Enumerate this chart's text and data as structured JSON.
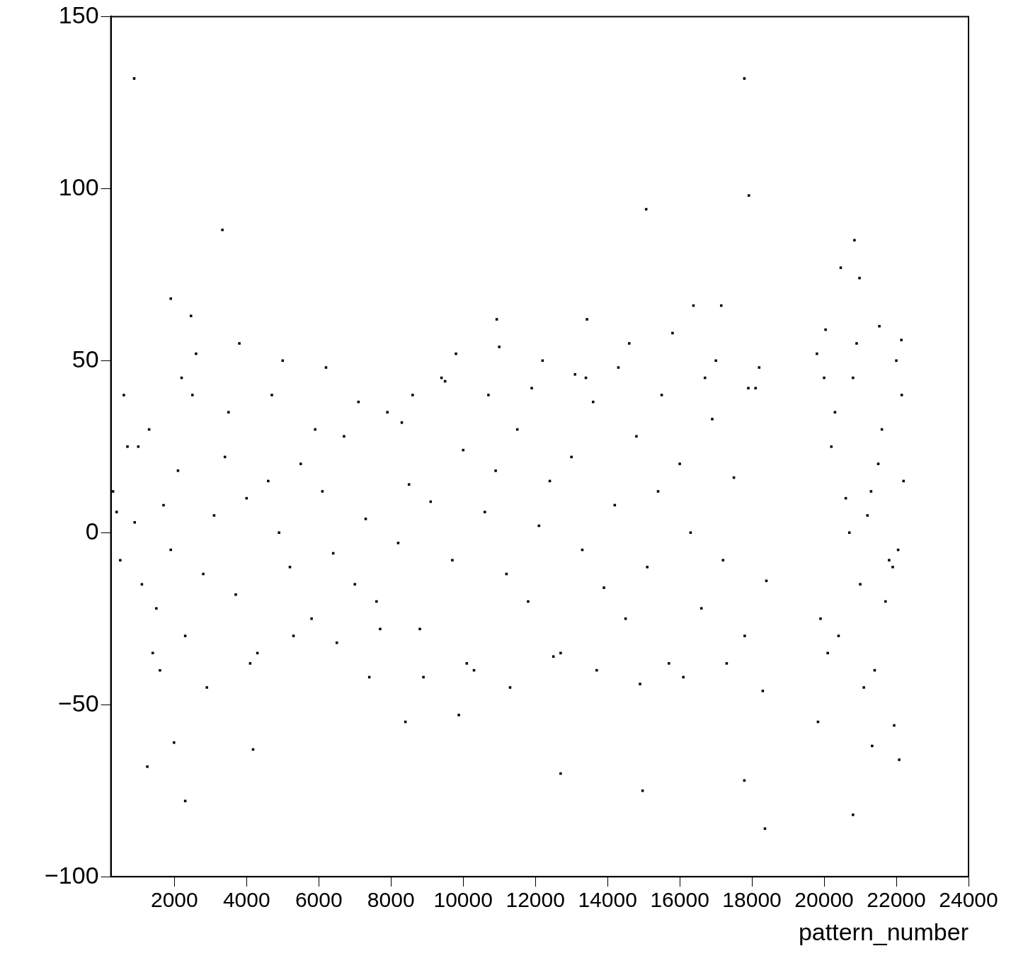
{
  "chart_data": {
    "type": "scatter",
    "xlabel": "pattern_number",
    "marker": "square",
    "grid": false,
    "legend": false,
    "xlim": [
      240,
      24000
    ],
    "xticks": [
      2000,
      4000,
      6000,
      8000,
      10000,
      12000,
      14000,
      16000,
      18000,
      20000,
      22000,
      24000
    ],
    "ylim": [
      -100,
      150
    ],
    "yticks": [
      -100,
      -50,
      0,
      50,
      100,
      150
    ],
    "series": [
      {
        "color": "#000000",
        "x": [
          886,
          17790,
          15070,
          17915,
          3330,
          20840,
          20460,
          20980,
          1900,
          2460,
          16380,
          17150,
          10930,
          13430,
          20040,
          21530,
          22140,
          2300,
          1250,
          4180,
          1990,
          12700,
          14970,
          17790,
          18360,
          20800,
          21330,
          22080,
          19830,
          8400,
          9880,
          21940,
          300,
          500,
          700,
          900,
          1100,
          1300,
          1500,
          1700,
          1900,
          2100,
          2300,
          2500,
          2800,
          3100,
          3400,
          3700,
          4000,
          4300,
          4600,
          4900,
          5200,
          5500,
          5800,
          6100,
          6400,
          6700,
          7000,
          7300,
          7600,
          7900,
          8200,
          8500,
          8800,
          9100,
          9400,
          9700,
          10000,
          10300,
          10600,
          10900,
          11200,
          11500,
          11800,
          12100,
          12400,
          12700,
          13000,
          13300,
          13600,
          13900,
          14200,
          14500,
          14800,
          15100,
          15400,
          15700,
          16000,
          16300,
          16600,
          16900,
          17200,
          17500,
          17800,
          18100,
          18400,
          400,
          1000,
          1600,
          2200,
          2900,
          3500,
          4100,
          4700,
          5300,
          5900,
          6500,
          7100,
          7700,
          8300,
          8900,
          9500,
          10100,
          10700,
          11300,
          11900,
          12500,
          13100,
          13700,
          14300,
          14900,
          15500,
          16100,
          16700,
          17300,
          17900,
          18300,
          600,
          1400,
          2600,
          3800,
          5000,
          6200,
          7400,
          8600,
          9800,
          11000,
          12200,
          13400,
          14600,
          15800,
          17000,
          18200,
          19800,
          20000,
          20200,
          20400,
          20600,
          20800,
          21000,
          21200,
          21400,
          21600,
          21800,
          22000,
          22200,
          19900,
          20300,
          20700,
          21100,
          21500,
          21900,
          22150,
          20100,
          20900,
          21700,
          21300,
          22050
        ],
        "values": [
          132,
          132,
          94,
          98,
          88,
          85,
          77,
          74,
          68,
          63,
          66,
          66,
          62,
          62,
          59,
          60,
          56,
          -78,
          -68,
          -63,
          -61,
          -70,
          -75,
          -72,
          -86,
          -82,
          -62,
          -66,
          -55,
          -55,
          -53,
          -56,
          12,
          -8,
          25,
          3,
          -15,
          30,
          -22,
          8,
          -5,
          18,
          -30,
          40,
          -12,
          5,
          22,
          -18,
          10,
          -35,
          15,
          0,
          -10,
          20,
          -25,
          12,
          -6,
          28,
          -15,
          4,
          -20,
          35,
          -3,
          14,
          -28,
          9,
          45,
          -8,
          24,
          -40,
          6,
          18,
          -12,
          30,
          -20,
          2,
          15,
          -35,
          22,
          -5,
          38,
          -16,
          8,
          -25,
          28,
          -10,
          12,
          -38,
          20,
          0,
          -22,
          33,
          -8,
          16,
          -30,
          42,
          -14,
          6,
          25,
          -40,
          45,
          -45,
          35,
          -38,
          40,
          -30,
          30,
          -32,
          38,
          -28,
          32,
          -42,
          44,
          -38,
          40,
          -45,
          42,
          -36,
          46,
          -40,
          48,
          -44,
          40,
          -42,
          45,
          -38,
          42,
          -46,
          40,
          -35,
          52,
          55,
          50,
          48,
          -42,
          40,
          52,
          54,
          50,
          45,
          55,
          58,
          50,
          48,
          52,
          45,
          25,
          -30,
          10,
          45,
          -15,
          5,
          -40,
          30,
          -8,
          50,
          15,
          -25,
          35,
          0,
          -45,
          20,
          -10,
          40,
          -35,
          55,
          -20,
          12,
          -5
        ]
      }
    ]
  }
}
